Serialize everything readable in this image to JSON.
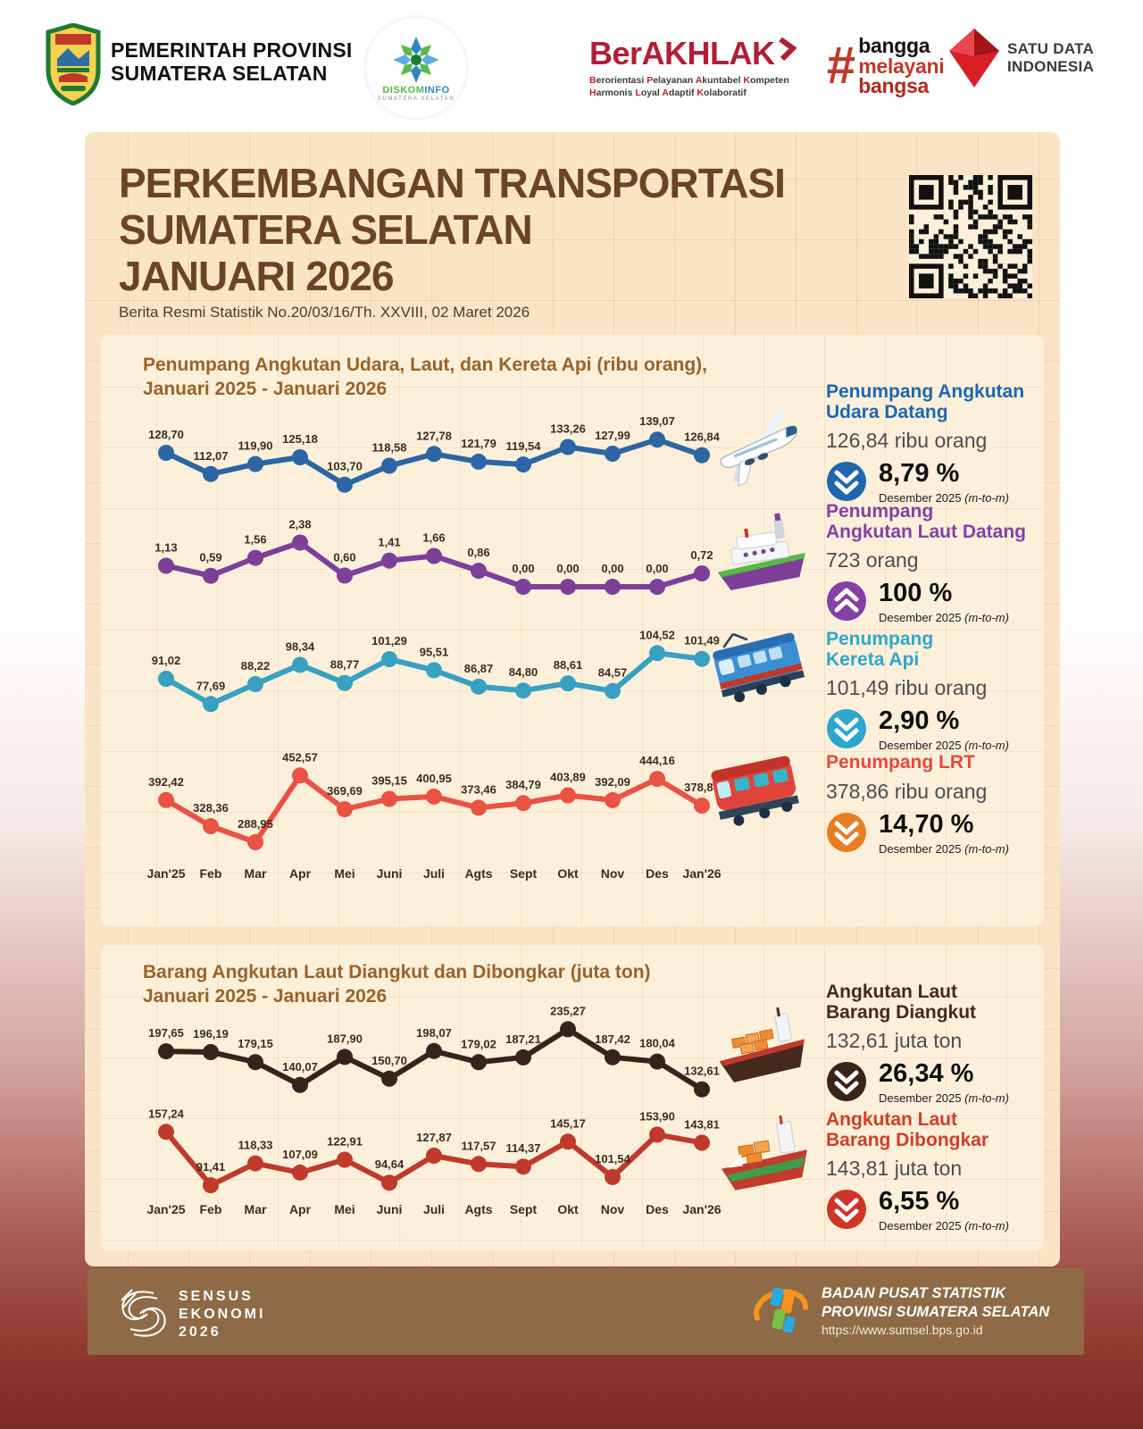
{
  "header": {
    "gov": {
      "line1": "PEMERINTAH PROVINSI",
      "line2": "SUMATERA SELATAN"
    },
    "diskominfo": {
      "name_part1": "DISKOM",
      "name_part2": "INFO",
      "sub": "SUMATERA SELATAN"
    },
    "berakhlak": {
      "title": "BerAKHLAK",
      "sub1": "Berorientasi Pelayanan Akuntabel Kompeten",
      "sub2": "Harmonis Loyal Adaptif Kolaboratif"
    },
    "bangga": {
      "hash": "#",
      "word1": "bangga",
      "word2": "melayani",
      "word3": "bangsa"
    },
    "satudata": {
      "line1": "SATU DATA",
      "line2": "INDONESIA"
    }
  },
  "title": {
    "line1": "PERKEMBANGAN TRANSPORTASI",
    "line2": "SUMATERA SELATAN",
    "line3": "JANUARI 2026",
    "subtitle": "Berita Resmi Statistik No.20/03/16/Th. XXVIII, 02 Maret 2026"
  },
  "chart_data": [
    {
      "type": "line",
      "title_line1": "Penumpang Angkutan Udara, Laut, dan Kereta Api (ribu orang),",
      "title_line2": "Januari 2025 - Januari 2026",
      "unit": "ribu orang",
      "categories": [
        "Jan'25",
        "Feb",
        "Mar",
        "Apr",
        "Mei",
        "Juni",
        "Juli",
        "Agts",
        "Sept",
        "Okt",
        "Nov",
        "Des",
        "Jan'26"
      ],
      "legend_position": "none",
      "grid": false,
      "series": [
        {
          "name": "Penumpang Angkutan Udara",
          "color": "#2c66a5",
          "values": [
            128.7,
            112.07,
            119.9,
            125.18,
            103.7,
            118.58,
            127.78,
            121.79,
            119.54,
            133.26,
            127.99,
            139.07,
            126.84
          ]
        },
        {
          "name": "Penumpang Angkutan Laut",
          "color": "#7d3f98",
          "values": [
            1.13,
            0.59,
            1.56,
            2.38,
            0.6,
            1.41,
            1.66,
            0.86,
            0.0,
            0.0,
            0.0,
            0.0,
            0.72
          ]
        },
        {
          "name": "Penumpang Kereta Api",
          "color": "#38a0c0",
          "values": [
            91.02,
            77.69,
            88.22,
            98.34,
            88.77,
            101.29,
            95.51,
            86.87,
            84.8,
            88.61,
            84.57,
            104.52,
            101.49
          ]
        },
        {
          "name": "Penumpang LRT",
          "color": "#ea5244",
          "values": [
            392.42,
            328.36,
            288.95,
            452.57,
            369.69,
            395.15,
            400.95,
            373.46,
            384.79,
            403.89,
            392.09,
            444.16,
            378.86
          ]
        }
      ]
    },
    {
      "type": "line",
      "title_line1": "Barang Angkutan Laut Diangkut dan Dibongkar (juta ton)",
      "title_line2": "Januari 2025 - Januari 2026",
      "unit": "juta ton",
      "categories": [
        "Jan'25",
        "Feb",
        "Mar",
        "Apr",
        "Mei",
        "Juni",
        "Juli",
        "Agts",
        "Sept",
        "Okt",
        "Nov",
        "Des",
        "Jan'26"
      ],
      "legend_position": "none",
      "grid": false,
      "series": [
        {
          "name": "Angkutan Laut Barang Diangkut",
          "color": "#38231b",
          "values": [
            197.65,
            196.19,
            179.15,
            140.07,
            187.9,
            150.7,
            198.07,
            179.02,
            187.21,
            235.27,
            187.42,
            180.04,
            132.61
          ]
        },
        {
          "name": "Angkutan Laut Barang Dibongkar",
          "color": "#c03a2b",
          "values": [
            157.24,
            91.41,
            118.33,
            107.09,
            122.91,
            94.64,
            127.87,
            117.57,
            114.37,
            145.17,
            101.54,
            153.9,
            143.81
          ]
        }
      ]
    }
  ],
  "stats": [
    {
      "title_line1": "Penumpang Angkutan",
      "title_line2": "Udara Datang",
      "title_color": "#1d67ae",
      "value": "126,84 ribu orang",
      "pct": "8,79 %",
      "direction": "down",
      "arrow_color": "#1d67ae",
      "caption": "Desember 2025",
      "caption_note": "(m-to-m)"
    },
    {
      "title_line1": "Penumpang",
      "title_line2": "Angkutan Laut Datang",
      "title_color": "#8440a5",
      "value": "723 orang",
      "pct": "100 %",
      "direction": "up",
      "arrow_color": "#8440a5",
      "caption": "Desember 2025",
      "caption_note": "(m-to-m)"
    },
    {
      "title_line1": "Penumpang",
      "title_line2": "Kereta Api",
      "title_color": "#2da7cb",
      "value": "101,49 ribu orang",
      "pct": "2,90 %",
      "direction": "down",
      "arrow_color": "#2da7cb",
      "caption": "Desember 2025",
      "caption_note": "(m-to-m)"
    },
    {
      "title_line1": "Penumpang LRT",
      "title_line2": "",
      "title_color": "#e8483b",
      "value": "378,86 ribu orang",
      "pct": "14,70 %",
      "direction": "down",
      "arrow_color": "#e87e22",
      "caption": "Desember 2025",
      "caption_note": "(m-to-m)"
    },
    {
      "title_line1": "Angkutan Laut",
      "title_line2": "Barang Diangkut",
      "title_color": "#45291d",
      "value": "132,61 juta ton",
      "pct": "26,34 %",
      "direction": "down",
      "arrow_color": "#3a241a",
      "caption": "Desember 2025",
      "caption_note": "(m-to-m)"
    },
    {
      "title_line1": "Angkutan Laut",
      "title_line2": "Barang Dibongkar",
      "title_color": "#d23c2a",
      "value": "143,81 juta ton",
      "pct": "6,55 %",
      "direction": "down",
      "arrow_color": "#cf3527",
      "caption": "Desember 2025",
      "caption_note": "(m-to-m)"
    }
  ],
  "footer": {
    "sensus_line1": "SENSUS",
    "sensus_line2": "EKONOMI",
    "sensus_line3": "2026",
    "bps_line1": "BADAN PUSAT STATISTIK",
    "bps_line2": "PROVINSI SUMATERA SELATAN",
    "bps_url": "https://www.sumsel.bps.go.id"
  }
}
